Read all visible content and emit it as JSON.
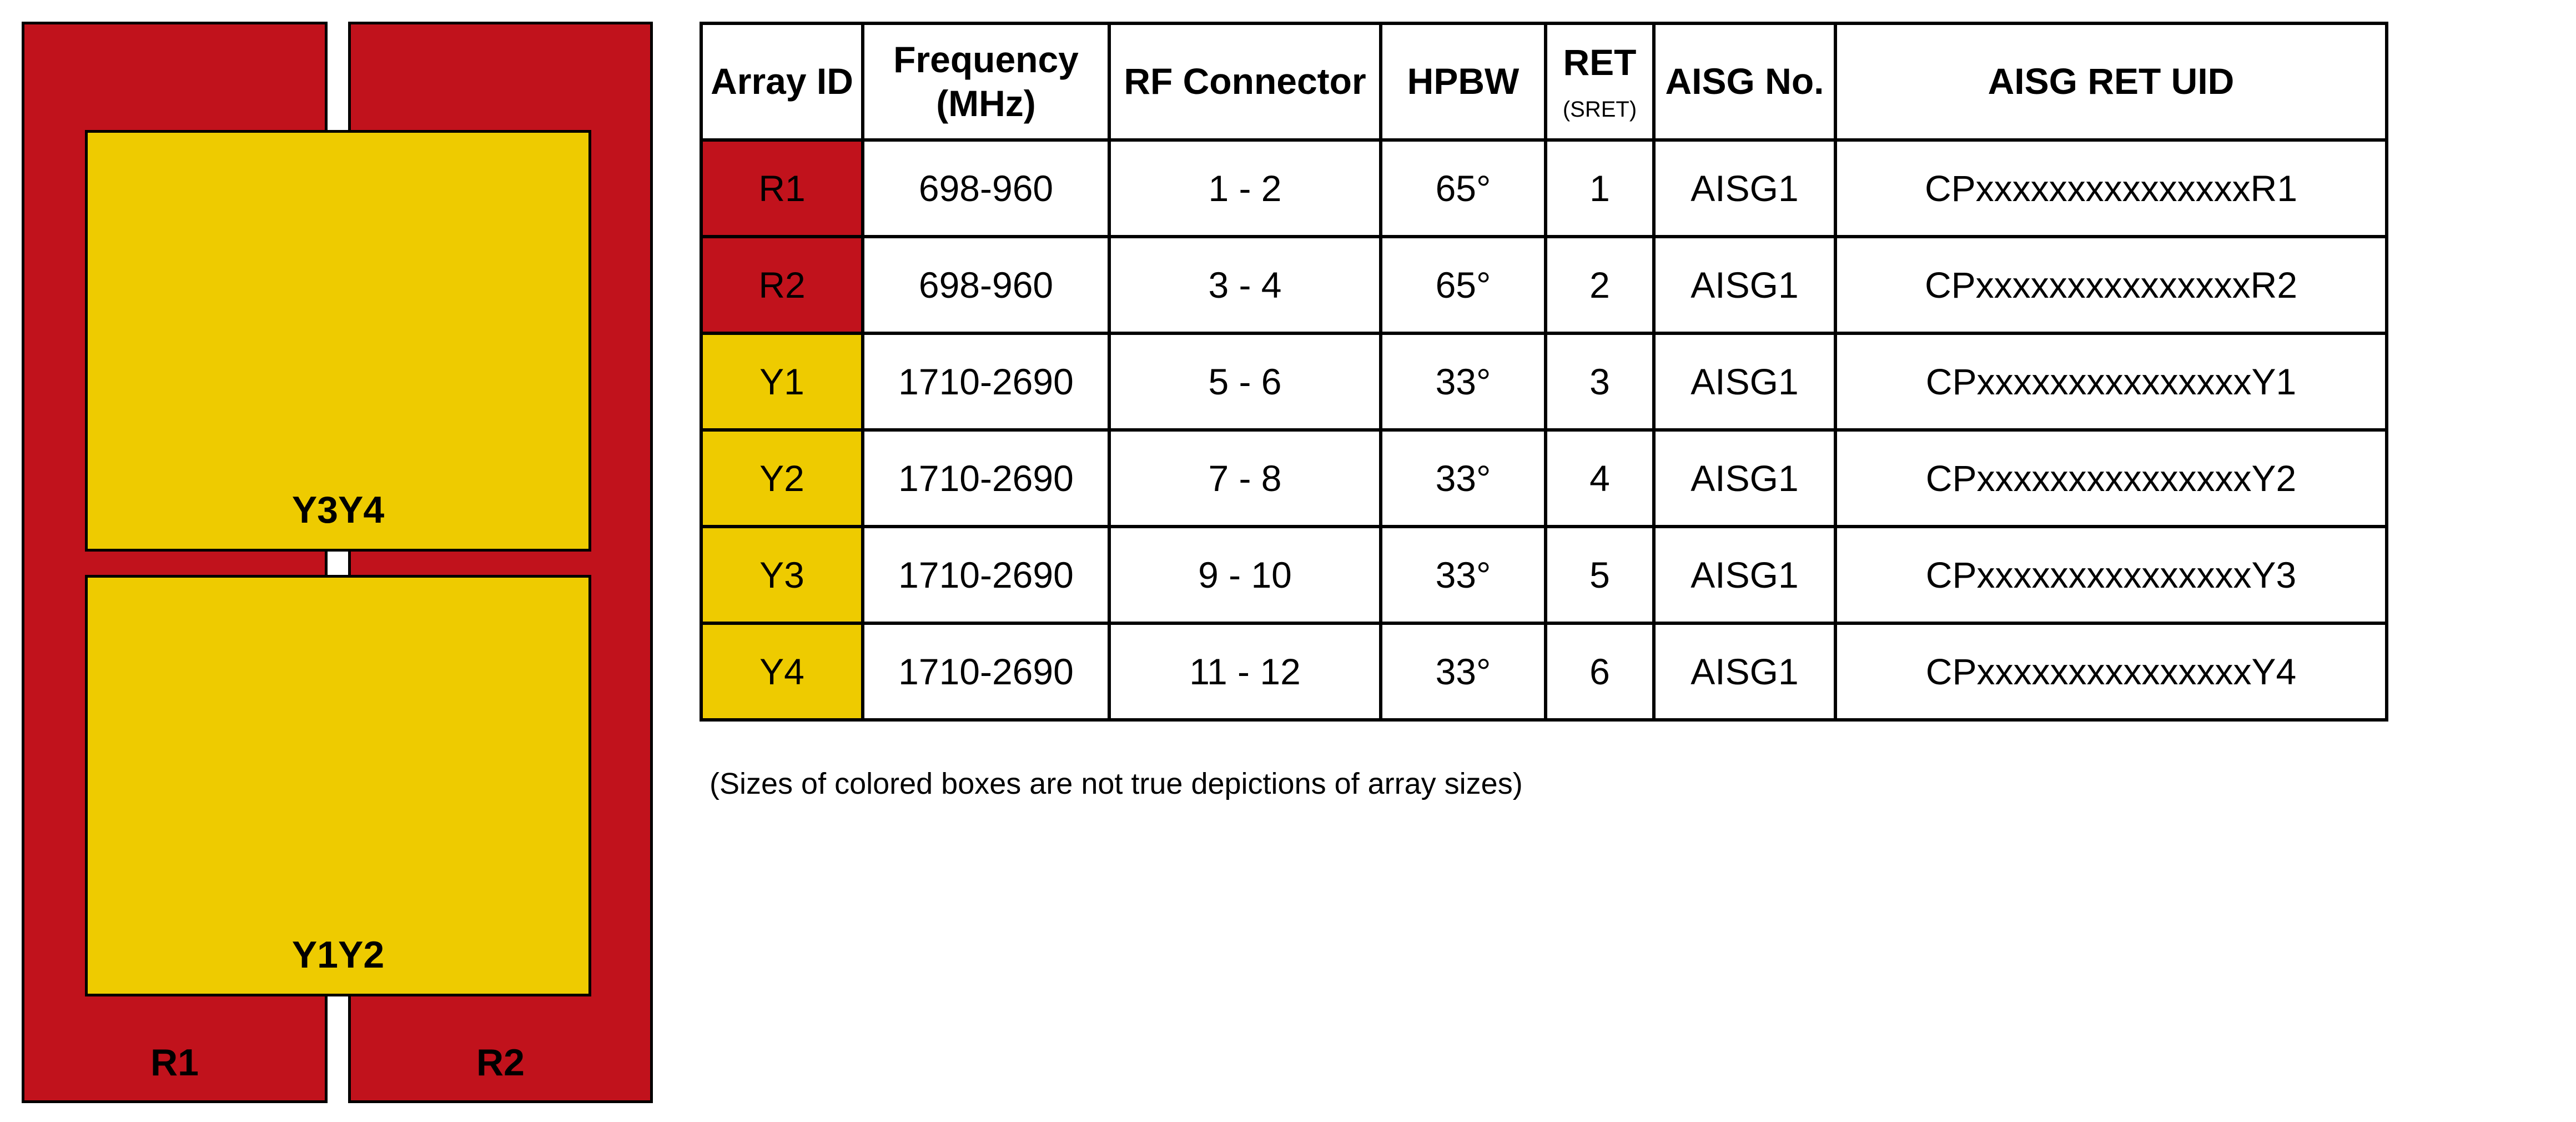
{
  "colors": {
    "red": "#C1121C",
    "yellow": "#EECB00"
  },
  "diagram": {
    "labels": {
      "top_box": "Y3Y4",
      "bottom_box": "Y1Y2",
      "left_column": "R1",
      "right_column": "R2"
    }
  },
  "table": {
    "headers": [
      {
        "label": "Array ID"
      },
      {
        "label": "Frequency",
        "sub": "(MHz)"
      },
      {
        "label": "RF Connector"
      },
      {
        "label": "HPBW"
      },
      {
        "label": "RET",
        "sub": "(SRET)"
      },
      {
        "label": "AISG No."
      },
      {
        "label": "AISG RET UID"
      }
    ],
    "rows": [
      {
        "id": "R1",
        "color": "red",
        "freq": "698-960",
        "rf": "1 - 2",
        "hpbw": "65°",
        "ret": "1",
        "aisg": "AISG1",
        "uid": "CPxxxxxxxxxxxxxxxR1"
      },
      {
        "id": "R2",
        "color": "red",
        "freq": "698-960",
        "rf": "3 - 4",
        "hpbw": "65°",
        "ret": "2",
        "aisg": "AISG1",
        "uid": "CPxxxxxxxxxxxxxxxR2"
      },
      {
        "id": "Y1",
        "color": "yellow",
        "freq": "1710-2690",
        "rf": "5 - 6",
        "hpbw": "33°",
        "ret": "3",
        "aisg": "AISG1",
        "uid": "CPxxxxxxxxxxxxxxxY1"
      },
      {
        "id": "Y2",
        "color": "yellow",
        "freq": "1710-2690",
        "rf": "7 - 8",
        "hpbw": "33°",
        "ret": "4",
        "aisg": "AISG1",
        "uid": "CPxxxxxxxxxxxxxxxY2"
      },
      {
        "id": "Y3",
        "color": "yellow",
        "freq": "1710-2690",
        "rf": "9 - 10",
        "hpbw": "33°",
        "ret": "5",
        "aisg": "AISG1",
        "uid": "CPxxxxxxxxxxxxxxxY3"
      },
      {
        "id": "Y4",
        "color": "yellow",
        "freq": "1710-2690",
        "rf": "11 - 12",
        "hpbw": "33°",
        "ret": "6",
        "aisg": "AISG1",
        "uid": "CPxxxxxxxxxxxxxxxY4"
      }
    ]
  },
  "note": "(Sizes of colored boxes are not true depictions of array sizes)"
}
